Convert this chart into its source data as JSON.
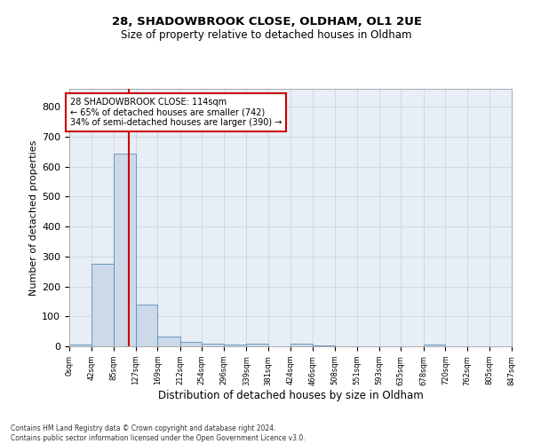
{
  "title1": "28, SHADOWBROOK CLOSE, OLDHAM, OL1 2UE",
  "title2": "Size of property relative to detached houses in Oldham",
  "xlabel": "Distribution of detached houses by size in Oldham",
  "ylabel": "Number of detached properties",
  "bin_edges": [
    0,
    42,
    85,
    127,
    169,
    212,
    254,
    296,
    339,
    381,
    424,
    466,
    508,
    551,
    593,
    635,
    678,
    720,
    762,
    805,
    847
  ],
  "bar_heights": [
    5,
    275,
    645,
    140,
    32,
    15,
    10,
    5,
    8,
    0,
    8,
    2,
    0,
    0,
    0,
    0,
    5,
    0,
    0,
    0
  ],
  "bar_color": "#ccd9e8",
  "bar_edge_color": "#5b8db8",
  "property_size": 114,
  "vline_color": "#cc0000",
  "annotation_line1": "28 SHADOWBROOK CLOSE: 114sqm",
  "annotation_line2": "← 65% of detached houses are smaller (742)",
  "annotation_line3": "34% of semi-detached houses are larger (390) →",
  "annotation_box_color": "#cc0000",
  "annotation_box_fill": "#ffffff",
  "ylim": [
    0,
    860
  ],
  "yticks": [
    0,
    100,
    200,
    300,
    400,
    500,
    600,
    700,
    800
  ],
  "grid_color": "#c8cfd8",
  "bg_color": "#e8eef5",
  "footer_line1": "Contains HM Land Registry data © Crown copyright and database right 2024.",
  "footer_line2": "Contains public sector information licensed under the Open Government Licence v3.0."
}
